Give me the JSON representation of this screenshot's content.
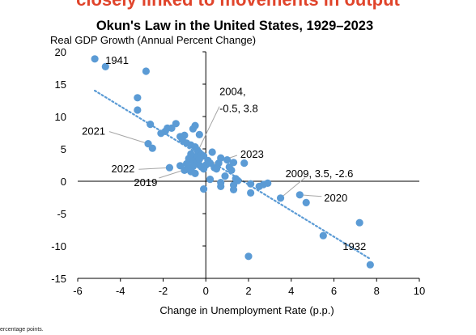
{
  "header": {
    "cutoff_text": "closely linked to movements in output"
  },
  "footnote": "ercentage points.",
  "colors": {
    "points": "#5b9bd5",
    "trend": "#5b9bd5",
    "leader": "#a6a6a6",
    "axis": "#000000"
  },
  "chart_data": {
    "type": "scatter",
    "title": "Okun's Law in the United States, 1929–2023",
    "ylabel": "Real GDP Growth (Annual Percent Change)",
    "xlabel": "Change in Unemployment Rate (p.p.)",
    "xlim": [
      -6,
      10
    ],
    "ylim": [
      -15,
      20
    ],
    "xticks": [
      -6,
      -4,
      -2,
      0,
      2,
      4,
      6,
      8,
      10
    ],
    "yticks": [
      -15,
      -10,
      -5,
      0,
      5,
      10,
      15,
      20
    ],
    "grid": false,
    "trendline": {
      "style": "dotted",
      "x": [
        -5.2,
        7.7
      ],
      "y": [
        14.0,
        -12.0
      ]
    },
    "points": [
      [
        -5.2,
        18.9
      ],
      [
        -4.7,
        17.7
      ],
      [
        -2.8,
        17.0
      ],
      [
        -3.2,
        12.9
      ],
      [
        -3.2,
        11.0
      ],
      [
        -2.6,
        8.8
      ],
      [
        -2.7,
        5.8
      ],
      [
        -2.5,
        5.1
      ],
      [
        -1.9,
        7.7
      ],
      [
        -1.8,
        8.2
      ],
      [
        -1.6,
        8.2
      ],
      [
        -1.4,
        8.9
      ],
      [
        -2.1,
        7.4
      ],
      [
        -1.2,
        6.9
      ],
      [
        -1.0,
        7.1
      ],
      [
        -1.1,
        6.4
      ],
      [
        -0.9,
        5.9
      ],
      [
        -0.6,
        8.1
      ],
      [
        -0.5,
        8.6
      ],
      [
        -0.3,
        7.2
      ],
      [
        -0.7,
        5.6
      ],
      [
        -0.5,
        5.3
      ],
      [
        -0.4,
        4.8
      ],
      [
        -0.3,
        4.4
      ],
      [
        -0.2,
        4.1
      ],
      [
        -0.1,
        3.9
      ],
      [
        -0.5,
        3.8
      ],
      [
        -0.7,
        4.2
      ],
      [
        -0.8,
        3.5
      ],
      [
        -0.6,
        3.1
      ],
      [
        -0.9,
        2.7
      ],
      [
        -0.4,
        2.9
      ],
      [
        -0.3,
        2.5
      ],
      [
        -0.2,
        2.2
      ],
      [
        -0.1,
        1.9
      ],
      [
        0.0,
        2.5
      ],
      [
        -0.6,
        2.3
      ],
      [
        -0.8,
        1.9
      ],
      [
        -1.0,
        1.7
      ],
      [
        -0.7,
        1.5
      ],
      [
        -0.5,
        1.2
      ],
      [
        -1.2,
        2.4
      ],
      [
        -1.7,
        2.1
      ],
      [
        -0.3,
        3.4
      ],
      [
        0.1,
        3.2
      ],
      [
        0.2,
        2.8
      ],
      [
        0.3,
        4.5
      ],
      [
        0.4,
        2.1
      ],
      [
        0.6,
        2.8
      ],
      [
        0.5,
        1.9
      ],
      [
        0.7,
        3.6
      ],
      [
        1.0,
        3.3
      ],
      [
        1.1,
        2.2
      ],
      [
        1.3,
        2.9
      ],
      [
        1.2,
        1.7
      ],
      [
        1.4,
        0.4
      ],
      [
        1.5,
        0.1
      ],
      [
        1.8,
        2.8
      ],
      [
        0.9,
        0.8
      ],
      [
        0.2,
        0.3
      ],
      [
        0.7,
        -0.2
      ],
      [
        0.7,
        -0.8
      ],
      [
        1.3,
        -0.6
      ],
      [
        1.3,
        -1.3
      ],
      [
        -0.1,
        -1.2
      ],
      [
        2.1,
        -0.4
      ],
      [
        2.1,
        -1.8
      ],
      [
        2.5,
        -0.8
      ],
      [
        2.7,
        -0.5
      ],
      [
        2.9,
        -0.3
      ],
      [
        3.5,
        -2.6
      ],
      [
        4.4,
        -2.1
      ],
      [
        4.7,
        -3.3
      ],
      [
        5.5,
        -8.4
      ],
      [
        7.2,
        -6.4
      ],
      [
        7.7,
        -12.9
      ],
      [
        2.0,
        -11.6
      ]
    ],
    "annotations": [
      {
        "text": "1941",
        "x": -5.2,
        "y": 18.9
      },
      {
        "text": "2021",
        "x": -2.7,
        "y": 5.8
      },
      {
        "text": "2022",
        "x": -1.7,
        "y": 2.1
      },
      {
        "text": "2019",
        "x": -0.3,
        "y": 2.5
      },
      {
        "text": "2004,",
        "x": -0.5,
        "y": 3.8
      },
      {
        "text": "-0.5, 3.8",
        "x": -0.5,
        "y": 3.8
      },
      {
        "text": "2023",
        "x": 0.1,
        "y": 2.5
      },
      {
        "text": "2009, 3.5, -2.6",
        "x": 3.5,
        "y": -2.6
      },
      {
        "text": "2020",
        "x": 4.4,
        "y": -2.1
      },
      {
        "text": "1932",
        "x": 7.7,
        "y": -12.9
      }
    ]
  }
}
